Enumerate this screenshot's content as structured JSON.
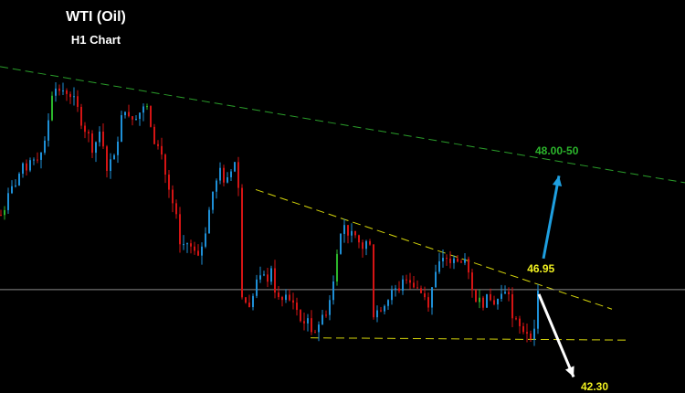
{
  "chart_data": {
    "type": "candlestick",
    "title": "WTI (Oil)",
    "subtitle": "H1 Chart",
    "xlim": [
      0,
      187.5
    ],
    "ylim": [
      46.05,
      49.47
    ],
    "grid": false,
    "colors": {
      "background": "#000000",
      "up": "#1e8fd6",
      "down": "#d41414",
      "alt": "#2bb52b",
      "resistance": "#2a9d2a",
      "triangle": "#d6d60a",
      "current": "#8a8a8a",
      "bull_arrow": "#1e9fe0",
      "bear_arrow": "#ffffff"
    },
    "price_path": [
      [
        0,
        47.6
      ],
      [
        5,
        47.96
      ],
      [
        10,
        48.12
      ],
      [
        12,
        48.2
      ],
      [
        14,
        48.67
      ],
      [
        15,
        48.71
      ],
      [
        19,
        48.67
      ],
      [
        21,
        48.51
      ],
      [
        24,
        48.28
      ],
      [
        25,
        48.2
      ],
      [
        27,
        48.28
      ],
      [
        29,
        48.04
      ],
      [
        31,
        48.08
      ],
      [
        33,
        48.51
      ],
      [
        36,
        48.47
      ],
      [
        40,
        48.53
      ],
      [
        41,
        48.32
      ],
      [
        44,
        48.12
      ],
      [
        46,
        47.8
      ],
      [
        48,
        47.56
      ],
      [
        49,
        47.32
      ],
      [
        51,
        47.36
      ],
      [
        54,
        47.2
      ],
      [
        56,
        47.48
      ],
      [
        58,
        47.8
      ],
      [
        60,
        47.96
      ],
      [
        62,
        47.88
      ],
      [
        64,
        48.08
      ],
      [
        65,
        47.84
      ],
      [
        66,
        46.93
      ],
      [
        68,
        46.77
      ],
      [
        70,
        47.01
      ],
      [
        74,
        47.08
      ],
      [
        76,
        46.85
      ],
      [
        80,
        46.85
      ],
      [
        82,
        46.69
      ],
      [
        86,
        46.61
      ],
      [
        89,
        46.77
      ],
      [
        91,
        47.01
      ],
      [
        92,
        47.32
      ],
      [
        94,
        47.52
      ],
      [
        96,
        47.4
      ],
      [
        99,
        47.32
      ],
      [
        101,
        47.4
      ],
      [
        102,
        46.73
      ],
      [
        105,
        46.85
      ],
      [
        109,
        46.97
      ],
      [
        111,
        47.08
      ],
      [
        115,
        46.93
      ],
      [
        117,
        46.85
      ],
      [
        119,
        47.08
      ],
      [
        121,
        47.24
      ],
      [
        125,
        47.2
      ],
      [
        127,
        47.16
      ],
      [
        129,
        46.93
      ],
      [
        131,
        46.85
      ],
      [
        135,
        46.85
      ],
      [
        139,
        46.93
      ],
      [
        140,
        46.69
      ],
      [
        142,
        46.61
      ],
      [
        146,
        46.57
      ],
      [
        147,
        46.94
      ]
    ],
    "lines": [
      {
        "name": "resistance",
        "style": "dashed",
        "color": "#2a9d2a",
        "from": [
          0,
          48.89
        ],
        "to": [
          187.5,
          47.88
        ]
      },
      {
        "name": "descending-trendline",
        "style": "dashed",
        "color": "#d6d60a",
        "from": [
          70,
          47.82
        ],
        "to": [
          167.5,
          46.78
        ]
      },
      {
        "name": "support",
        "style": "dashed",
        "color": "#d6d60a",
        "from": [
          85,
          46.53
        ],
        "to": [
          172.5,
          46.51
        ]
      },
      {
        "name": "current-price",
        "style": "solid",
        "color": "#8a8a8a",
        "price": 46.95
      }
    ],
    "arrows": [
      {
        "name": "bullish-arrow",
        "color": "#1e9fe0",
        "from": [
          148.75,
          47.22
        ],
        "to": [
          153,
          47.94
        ]
      },
      {
        "name": "bearish-arrow",
        "color": "#ffffff",
        "from": [
          147.5,
          46.91
        ],
        "to": [
          157,
          46.19
        ]
      }
    ],
    "annotations": [
      {
        "text": "48.00-50",
        "color": "#2bb52b",
        "at": [
          146.5,
          48.15
        ]
      },
      {
        "text": "46.95",
        "color": "#f0f020",
        "at": [
          144.3,
          47.12
        ]
      },
      {
        "text": "42.30",
        "color": "#f0f020",
        "at": [
          159,
          46.1
        ]
      }
    ]
  }
}
